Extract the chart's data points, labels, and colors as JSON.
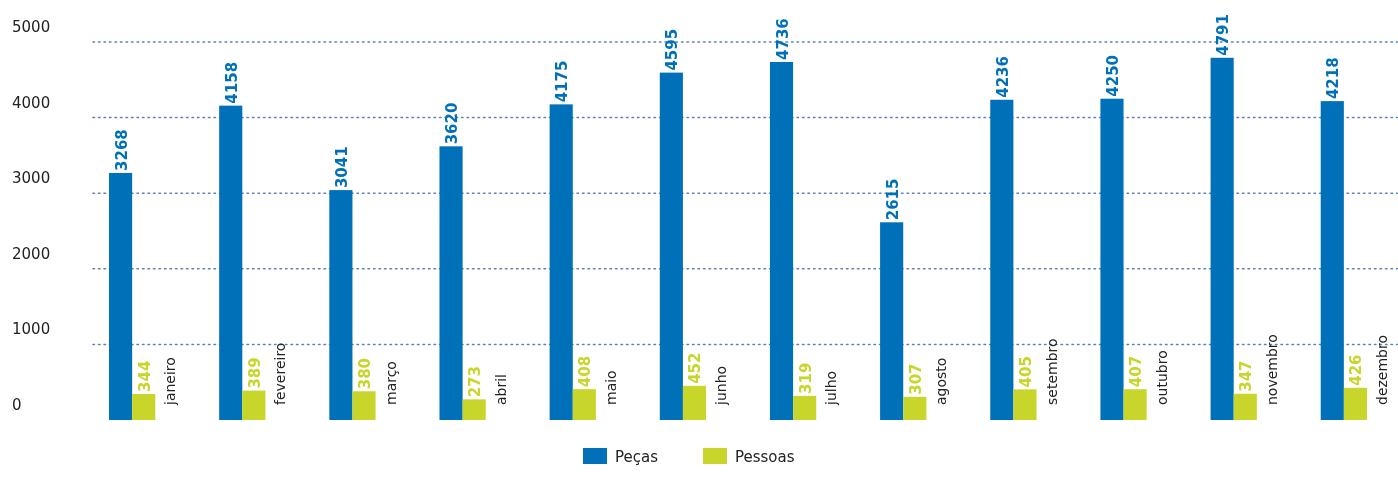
{
  "chart_data": {
    "type": "bar",
    "categories": [
      "janeiro",
      "fevereiro",
      "março",
      "abril",
      "maio",
      "junho",
      "julho",
      "agosto",
      "setembro",
      "outubro",
      "novembro",
      "dezembro"
    ],
    "series": [
      {
        "name": "Peças",
        "color": "#0070b8",
        "values": [
          3268,
          4158,
          3041,
          3620,
          4175,
          4595,
          4736,
          2615,
          4236,
          4250,
          4791,
          4218
        ]
      },
      {
        "name": "Pessoas",
        "color": "#c8d62b",
        "values": [
          344,
          389,
          380,
          273,
          408,
          452,
          319,
          307,
          405,
          407,
          347,
          426
        ]
      }
    ],
    "ylim": [
      0,
      5000
    ],
    "yticks": [
      0,
      1000,
      2000,
      3000,
      4000,
      5000
    ],
    "grid": "y",
    "legend": "bottom",
    "data_labels": true
  }
}
